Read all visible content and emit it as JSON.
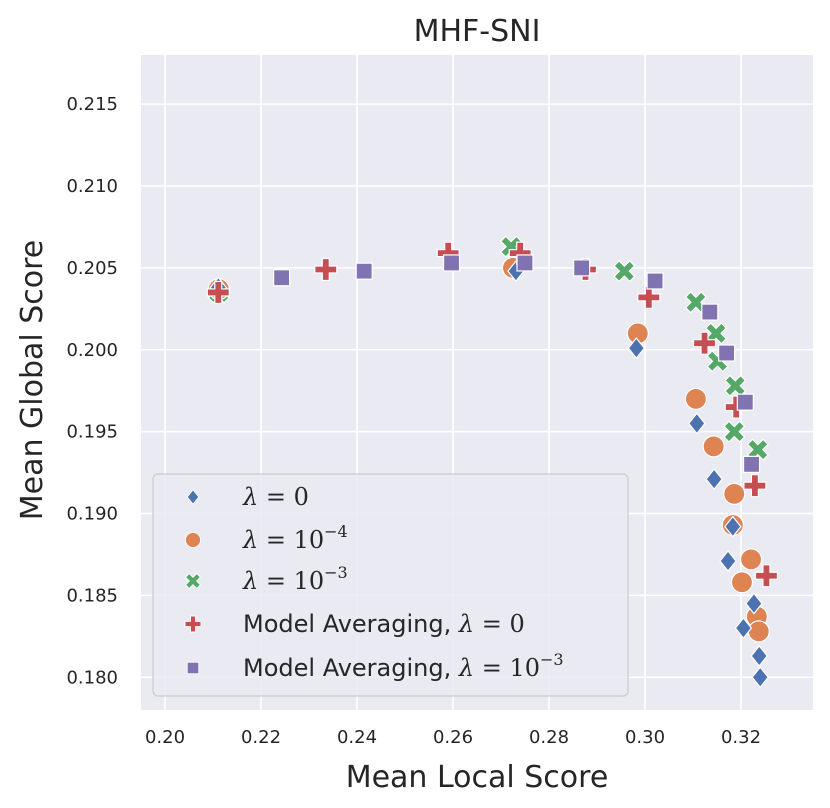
{
  "chart_data": {
    "type": "scatter",
    "title": "MHF-SNI",
    "xlabel": "Mean Local Score",
    "ylabel": "Mean Global Score",
    "xlim": [
      0.195,
      0.335
    ],
    "ylim": [
      0.178,
      0.218
    ],
    "xticks": [
      "0.20",
      "0.22",
      "0.24",
      "0.26",
      "0.28",
      "0.30",
      "0.32"
    ],
    "yticks": [
      "0.180",
      "0.185",
      "0.190",
      "0.195",
      "0.200",
      "0.205",
      "0.210",
      "0.215"
    ],
    "grid": true,
    "legend_position": "lower-left",
    "series": [
      {
        "name": "λ = 0",
        "marker": "diamond",
        "color": "#4c72b0",
        "points": [
          [
            0.2111,
            0.2038
          ],
          [
            0.2731,
            0.2048
          ],
          [
            0.2982,
            0.2001
          ],
          [
            0.3108,
            0.1955
          ],
          [
            0.3144,
            0.1921
          ],
          [
            0.3183,
            0.1892
          ],
          [
            0.3173,
            0.1871
          ],
          [
            0.3227,
            0.1845
          ],
          [
            0.3205,
            0.183
          ],
          [
            0.3238,
            0.1813
          ],
          [
            0.324,
            0.18
          ]
        ]
      },
      {
        "name": "λ = 10^-4",
        "marker": "circle",
        "color": "#dd8452",
        "points": [
          [
            0.2112,
            0.2037
          ],
          [
            0.2725,
            0.205
          ],
          [
            0.2985,
            0.201
          ],
          [
            0.3106,
            0.197
          ],
          [
            0.3143,
            0.1941
          ],
          [
            0.3186,
            0.1912
          ],
          [
            0.3221,
            0.1872
          ],
          [
            0.3202,
            0.1858
          ],
          [
            0.3233,
            0.1837
          ],
          [
            0.3237,
            0.1828
          ],
          [
            0.3183,
            0.1893
          ]
        ]
      },
      {
        "name": "λ = 10^-3",
        "marker": "x",
        "color": "#55a868",
        "points": [
          [
            0.2112,
            0.2035
          ],
          [
            0.2721,
            0.2063
          ],
          [
            0.2957,
            0.2048
          ],
          [
            0.3106,
            0.2029
          ],
          [
            0.3148,
            0.201
          ],
          [
            0.3151,
            0.1993
          ],
          [
            0.3188,
            0.1978
          ],
          [
            0.3186,
            0.195
          ],
          [
            0.3235,
            0.1939
          ]
        ]
      },
      {
        "name": "Model Averaging, λ = 0",
        "marker": "plus",
        "color": "#c44e52",
        "points": [
          [
            0.2111,
            0.2035
          ],
          [
            0.2335,
            0.2049
          ],
          [
            0.259,
            0.2059
          ],
          [
            0.274,
            0.2059
          ],
          [
            0.2876,
            0.2049
          ],
          [
            0.3008,
            0.2032
          ],
          [
            0.3124,
            0.2004
          ],
          [
            0.319,
            0.1965
          ],
          [
            0.3229,
            0.1917
          ],
          [
            0.3253,
            0.1862
          ]
        ]
      },
      {
        "name": "Model Averaging, λ = 10^-3",
        "marker": "square",
        "color": "#8172b2",
        "points": [
          [
            0.2243,
            0.2044
          ],
          [
            0.2415,
            0.2048
          ],
          [
            0.2597,
            0.2053
          ],
          [
            0.275,
            0.2053
          ],
          [
            0.2868,
            0.205
          ],
          [
            0.3021,
            0.2042
          ],
          [
            0.3135,
            0.2023
          ],
          [
            0.317,
            0.1998
          ],
          [
            0.3209,
            0.1968
          ],
          [
            0.3222,
            0.193
          ]
        ]
      }
    ]
  },
  "legend": {
    "items": [
      {
        "prefix": "",
        "sym": "λ",
        "eq": " = ",
        "base": "0",
        "sup": ""
      },
      {
        "prefix": "",
        "sym": "λ",
        "eq": " = ",
        "base": "10",
        "sup": "−4"
      },
      {
        "prefix": "",
        "sym": "λ",
        "eq": " = ",
        "base": "10",
        "sup": "−3"
      },
      {
        "prefix": "Model Averaging, ",
        "sym": "λ",
        "eq": " = ",
        "base": "0",
        "sup": ""
      },
      {
        "prefix": "Model Averaging, ",
        "sym": "λ",
        "eq": " = ",
        "base": "10",
        "sup": "−3"
      }
    ]
  }
}
